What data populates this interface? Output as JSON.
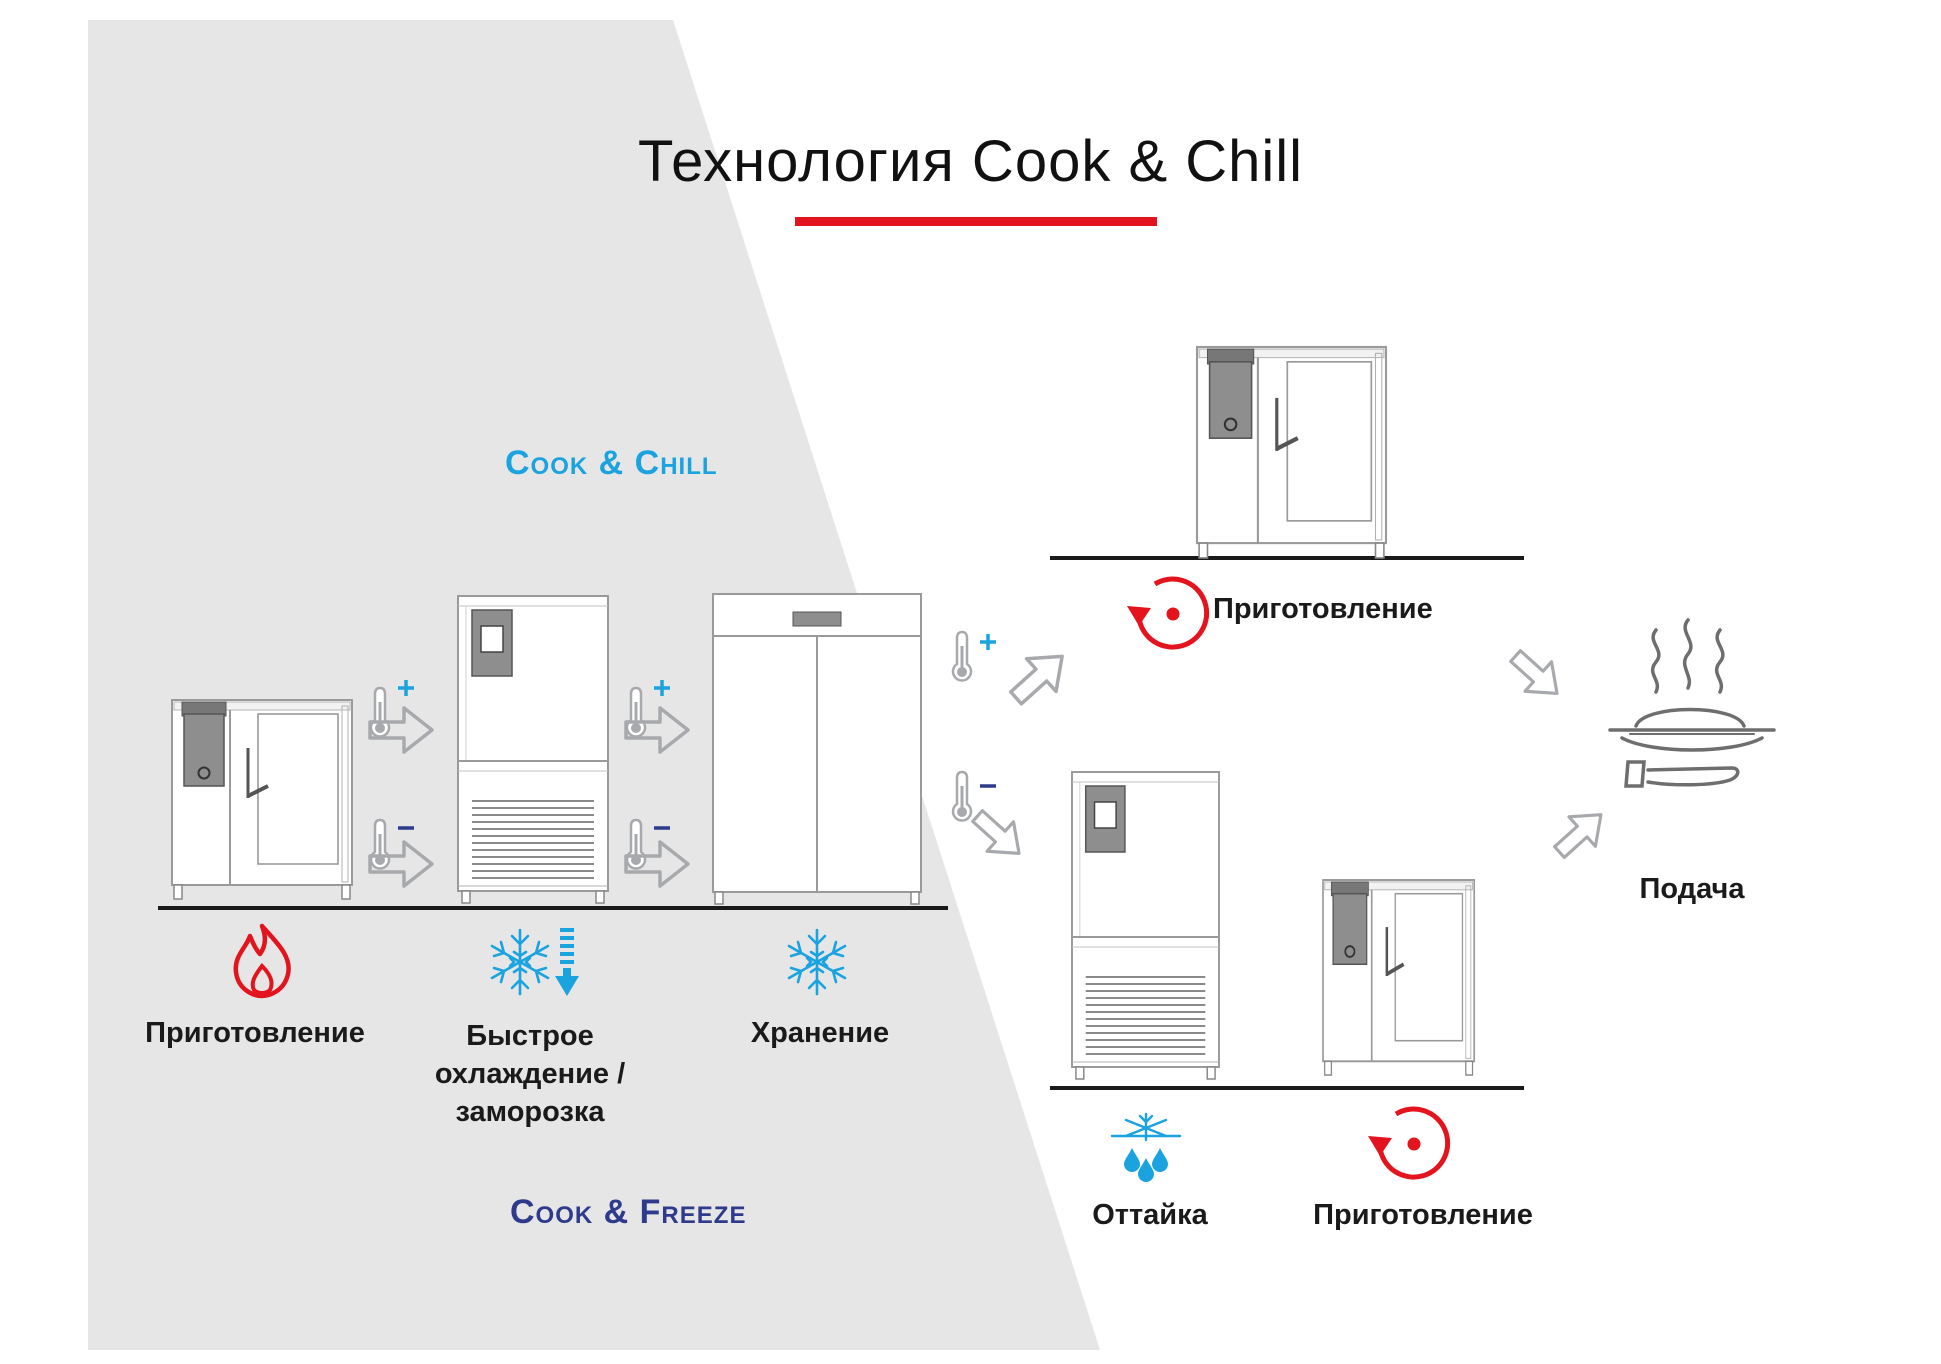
{
  "title": "Технология Cook & Chill",
  "colors": {
    "accent_red": "#e3141e",
    "chill_blue": "#1aa3df",
    "freeze_navy": "#2e3a8c",
    "panel_gray": "#e6e6e6",
    "arrow_gray": "#a7a9ac"
  },
  "sections": {
    "cook_chill": "Cook & Chill",
    "cook_freeze": "Cook & Freeze"
  },
  "stages": {
    "cooking": "Приготовление",
    "chilling_freezing": "Быстрое охлаждение / заморозка",
    "storage": "Хранение"
  },
  "right_branch": {
    "reheat_top": "Приготовление",
    "defrost": "Оттайка",
    "reheat_bottom": "Приготовление",
    "serving": "Подача"
  },
  "icons": [
    "flame-icon",
    "snowflake-down-arrow-icon",
    "snowflake-icon",
    "thermometer-plus-icon",
    "thermometer-minus-icon",
    "reheat-cycle-icon",
    "defrost-icon",
    "serving-plate-icon"
  ]
}
